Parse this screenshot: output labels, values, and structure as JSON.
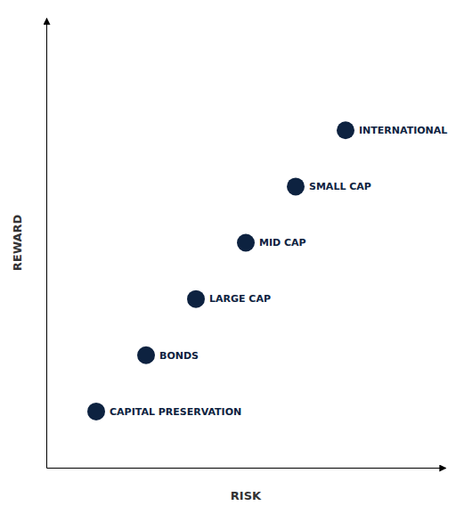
{
  "chart_data": {
    "type": "scatter",
    "x_label": "RISK",
    "y_label": "REWARD",
    "x": [
      1.0,
      2.0,
      3.0,
      4.0,
      5.0,
      6.0
    ],
    "values": [
      1.0,
      2.0,
      3.0,
      4.0,
      5.0,
      6.0
    ],
    "annotations": [
      "CAPITAL PRESERVATION",
      "BONDS",
      "LARGE CAP",
      "MID CAP",
      "SMALL CAP",
      "INTERNATIONAL"
    ],
    "xlim": [
      0,
      8
    ],
    "ylim": [
      0,
      8
    ],
    "tick_labels": false,
    "color": "#0d2240"
  }
}
